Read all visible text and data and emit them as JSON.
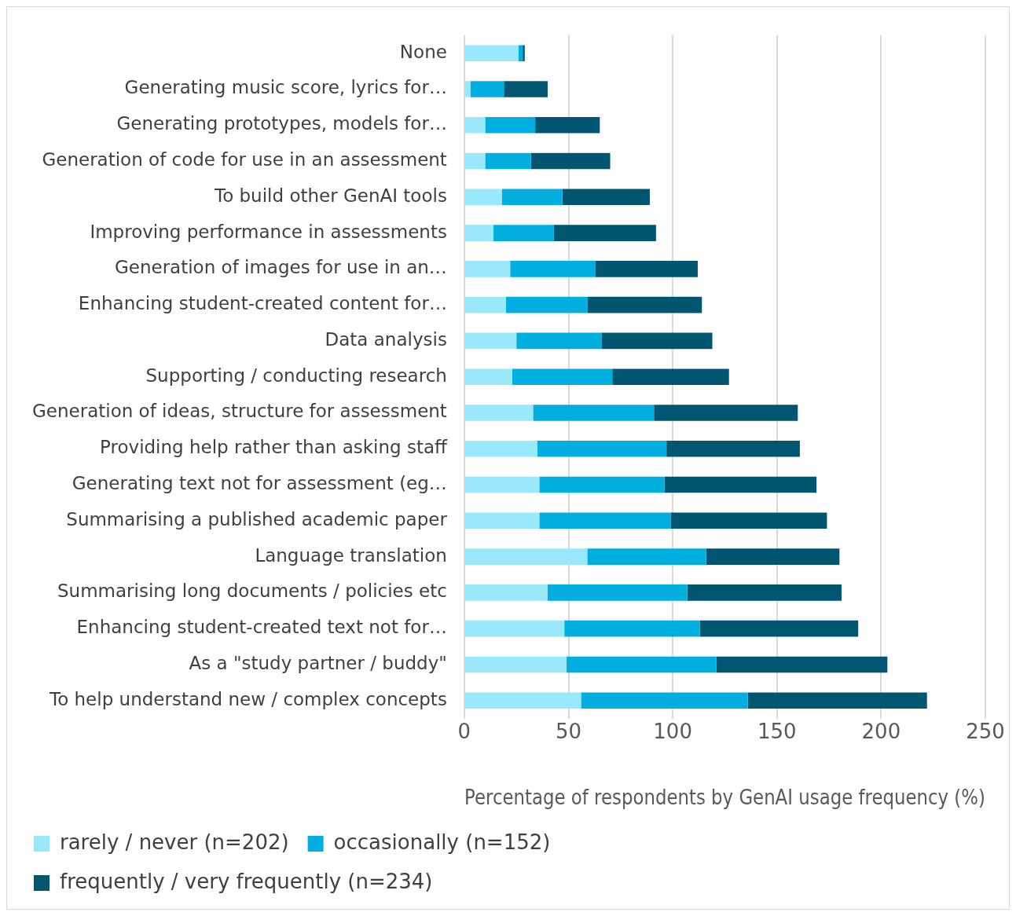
{
  "chart_data": {
    "type": "bar",
    "orientation": "horizontal",
    "stacked": true,
    "xlabel": "Percentage of respondents by GenAI usage frequency (%)",
    "categories": [
      "None",
      "Generating music score, lyrics for…",
      "Generating prototypes, models for…",
      "Generation of code for use in an assessment",
      "To build other GenAI tools",
      "Improving performance in assessments",
      "Generation of images for use in an…",
      "Enhancing student-created content for…",
      "Data analysis",
      "Supporting / conducting research",
      "Generation of ideas, structure for assessment",
      "Providing help rather than asking staff",
      "Generating text not for assessment (eg…",
      "Summarising a published academic paper",
      "Language translation",
      "Summarising long documents / policies etc",
      "Enhancing student-created text not for…",
      "As a \"study partner / buddy\"",
      "To help understand new / complex concepts"
    ],
    "series": [
      {
        "name": "rarely / never (n=202)",
        "color": "#99e8fc",
        "values": [
          26,
          3,
          10,
          10,
          18,
          14,
          22,
          20,
          25,
          23,
          33,
          35,
          36,
          36,
          59,
          40,
          48,
          49,
          56
        ]
      },
      {
        "name": "occasionally (n=152)",
        "color": "#00afe0",
        "values": [
          2,
          16,
          24,
          22,
          29,
          29,
          41,
          39,
          41,
          48,
          58,
          62,
          60,
          63,
          57,
          67,
          65,
          72,
          80
        ]
      },
      {
        "name": "frequently / very frequently (n=234)",
        "color": "#005670",
        "values": [
          1,
          21,
          31,
          38,
          42,
          49,
          49,
          55,
          53,
          56,
          69,
          64,
          73,
          75,
          64,
          74,
          76,
          82,
          86
        ]
      }
    ],
    "xlim": [
      0,
      250
    ],
    "xticks": [
      0,
      50,
      100,
      150,
      200,
      250
    ],
    "grid": "x",
    "legend": "bottom"
  }
}
